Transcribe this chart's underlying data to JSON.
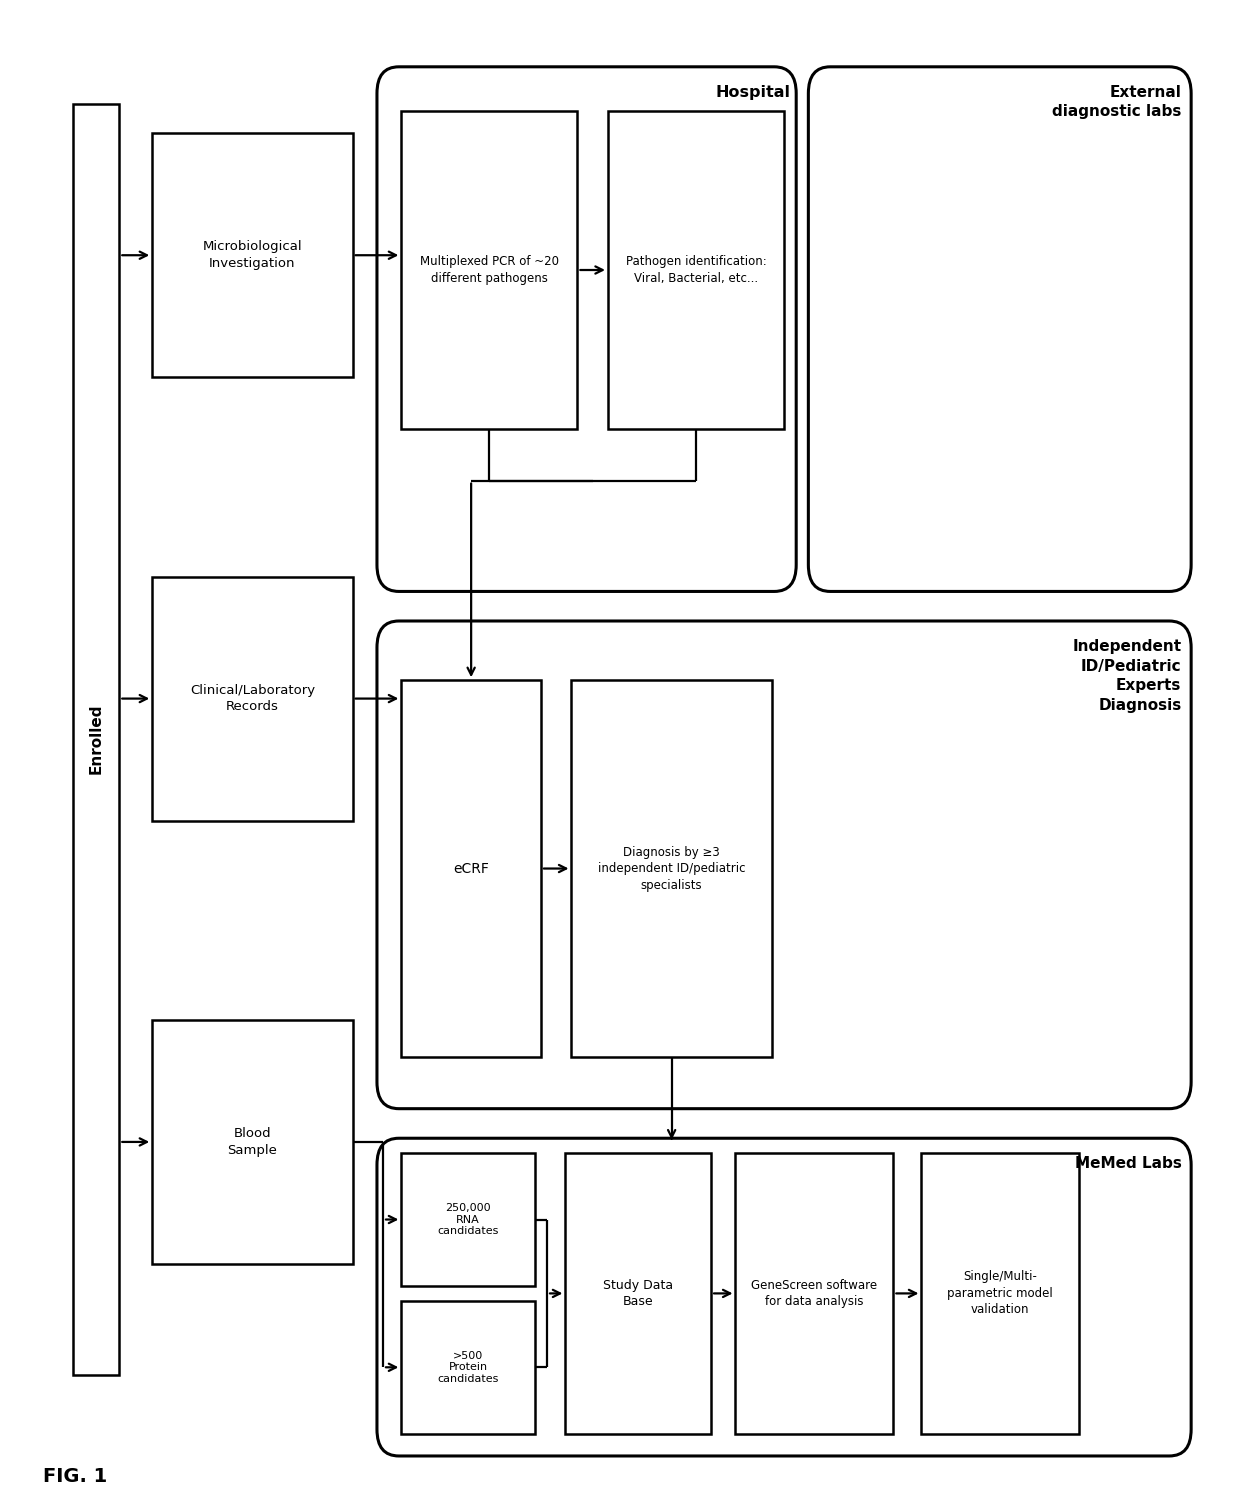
{
  "bg_color": "#ffffff",
  "ec": "#000000",
  "tc": "#000000",
  "fig_label": "FIG. 1",
  "enrolled_text": "Enrolled",
  "box_texts": {
    "microbio": "Microbiological\nInvestigation",
    "clinical": "Clinical/Laboratory\nRecords",
    "blood": "Blood\nSample",
    "multiplex": "Multiplexed PCR of ~20\ndifferent pathogens",
    "pathogen": "Pathogen identification:\nViral, Bacterial, etc...",
    "ecrf": "eCRF",
    "diagnosis": "Diagnosis by ≥3\nindependent ID/pediatric\nspecialists",
    "rna": "250,000\nRNA\ncandidates",
    "protein": ">500\nProtein\ncandidates",
    "study": "Study Data\nBase",
    "genescreen": "GeneScreen software\nfor data analysis",
    "single": "Single/Multi-\nparametric model\nvalidation"
  },
  "section_labels": {
    "hospital": "Hospital",
    "ext_diag": "External\ndiagnostic labs",
    "indep": "Independent\nID/Pediatric\nExperts\nDiagnosis",
    "memed": "MeMed Labs"
  }
}
